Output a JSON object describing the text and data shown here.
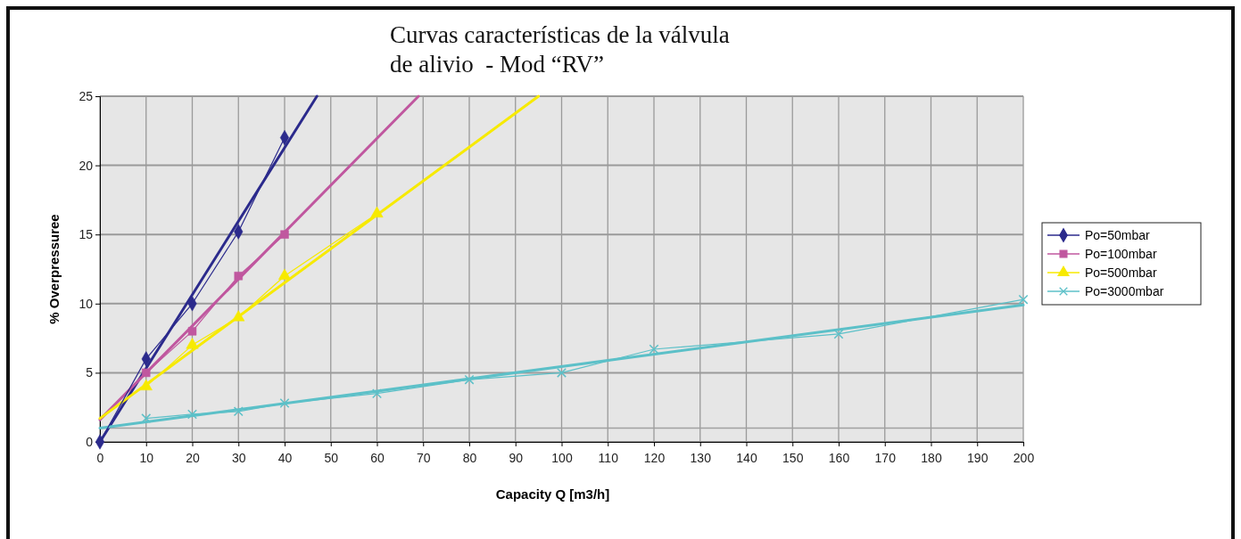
{
  "chart_data": {
    "type": "line",
    "title": "Curvas características de la válvula de alivio  - Mod “RV”",
    "xlabel": "Capacity Q [m3/h]",
    "ylabel": "% Overpressuree",
    "xlim": [
      0,
      200
    ],
    "ylim": [
      0,
      25
    ],
    "xticks": [
      0,
      10,
      20,
      30,
      40,
      50,
      60,
      70,
      80,
      90,
      100,
      110,
      120,
      130,
      140,
      150,
      160,
      170,
      180,
      190,
      200
    ],
    "yticks": [
      0,
      5,
      10,
      15,
      20,
      25
    ],
    "grid": true,
    "legend": "right",
    "line_style": "solid",
    "ref_lines": [
      {
        "axis": "y",
        "value": 1,
        "color": "#a0a0a0"
      }
    ],
    "series": [
      {
        "name": "Po=50mbar",
        "color": "#2b2a8c",
        "marker": "diamond",
        "x": [
          0,
          10,
          20,
          30,
          40
        ],
        "values": [
          0,
          6,
          10,
          15.2,
          22
        ]
      },
      {
        "name": "Po=100mbar",
        "color": "#c0579f",
        "marker": "square",
        "x": [
          10,
          20,
          30,
          40
        ],
        "values": [
          5,
          8,
          12,
          15
        ]
      },
      {
        "name": "Po=500mbar",
        "color": "#f7ea00",
        "marker": "triangle",
        "x": [
          10,
          20,
          30,
          40,
          60
        ],
        "values": [
          4,
          7,
          9,
          12,
          16.5
        ]
      },
      {
        "name": "Po=3000mbar",
        "color": "#5cc0c8",
        "marker": "cross",
        "x": [
          10,
          20,
          30,
          40,
          60,
          80,
          100,
          120,
          160,
          200
        ],
        "values": [
          1.7,
          2,
          2.2,
          2.8,
          3.5,
          4.5,
          5,
          6.7,
          7.8,
          10.3
        ]
      },
      {
        "type": "line",
        "color": "#2b2a8c",
        "marker": "none",
        "x": [
          0,
          47
        ],
        "values": [
          0,
          25
        ]
      },
      {
        "type": "line",
        "color": "#c0579f",
        "marker": "none",
        "x": [
          0,
          69
        ],
        "values": [
          1.6,
          25
        ]
      },
      {
        "type": "line",
        "color": "#f7ea00",
        "marker": "none",
        "x": [
          0,
          95
        ],
        "values": [
          1.7,
          25
        ]
      },
      {
        "type": "line",
        "color": "#5cc0c8",
        "marker": "none",
        "x": [
          0,
          200
        ],
        "values": [
          1,
          9.9
        ]
      }
    ]
  }
}
